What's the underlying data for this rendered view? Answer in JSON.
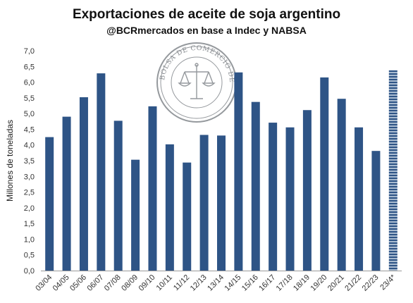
{
  "chart_data": {
    "type": "bar",
    "title": "Exportaciones de aceite de soja argentino",
    "subtitle": "@BCRmercados en base a Indec y NABSA",
    "ylabel": "Millones de toneladas",
    "xlabel": "",
    "ylim": [
      0,
      7.0
    ],
    "yticks": [
      "0,0",
      "0,5",
      "1,0",
      "1,5",
      "2,0",
      "2,5",
      "3,0",
      "3,5",
      "4,0",
      "4,5",
      "5,0",
      "5,5",
      "6,0",
      "6,5",
      "7,0"
    ],
    "categories": [
      "03/04",
      "04/05",
      "05/06",
      "06/07",
      "07/08",
      "08/09",
      "09/10",
      "10/11",
      "11/12",
      "12/13",
      "13/14",
      "14/15",
      "15/16",
      "16/17",
      "17/18",
      "18/19",
      "19/20",
      "20/21",
      "21/22",
      "22/23",
      "23/4*"
    ],
    "values": [
      4.25,
      4.9,
      5.52,
      6.28,
      4.77,
      3.53,
      5.23,
      4.02,
      3.44,
      4.32,
      4.3,
      6.31,
      5.37,
      4.71,
      4.56,
      5.11,
      6.15,
      5.47,
      4.56,
      3.81,
      6.38
    ],
    "estimate_categories": [
      "23/4*"
    ],
    "grid": false,
    "legend": "none",
    "colors": {
      "bar": "#2e5486",
      "estimate_bar": "#9fb2c9",
      "estimate_stripe": "#2e5486",
      "axis": "#9a9a9a"
    }
  },
  "watermark": {
    "name": "seal-logo",
    "text": "BOLSA DE COMERCIO DE ROSARIO"
  }
}
